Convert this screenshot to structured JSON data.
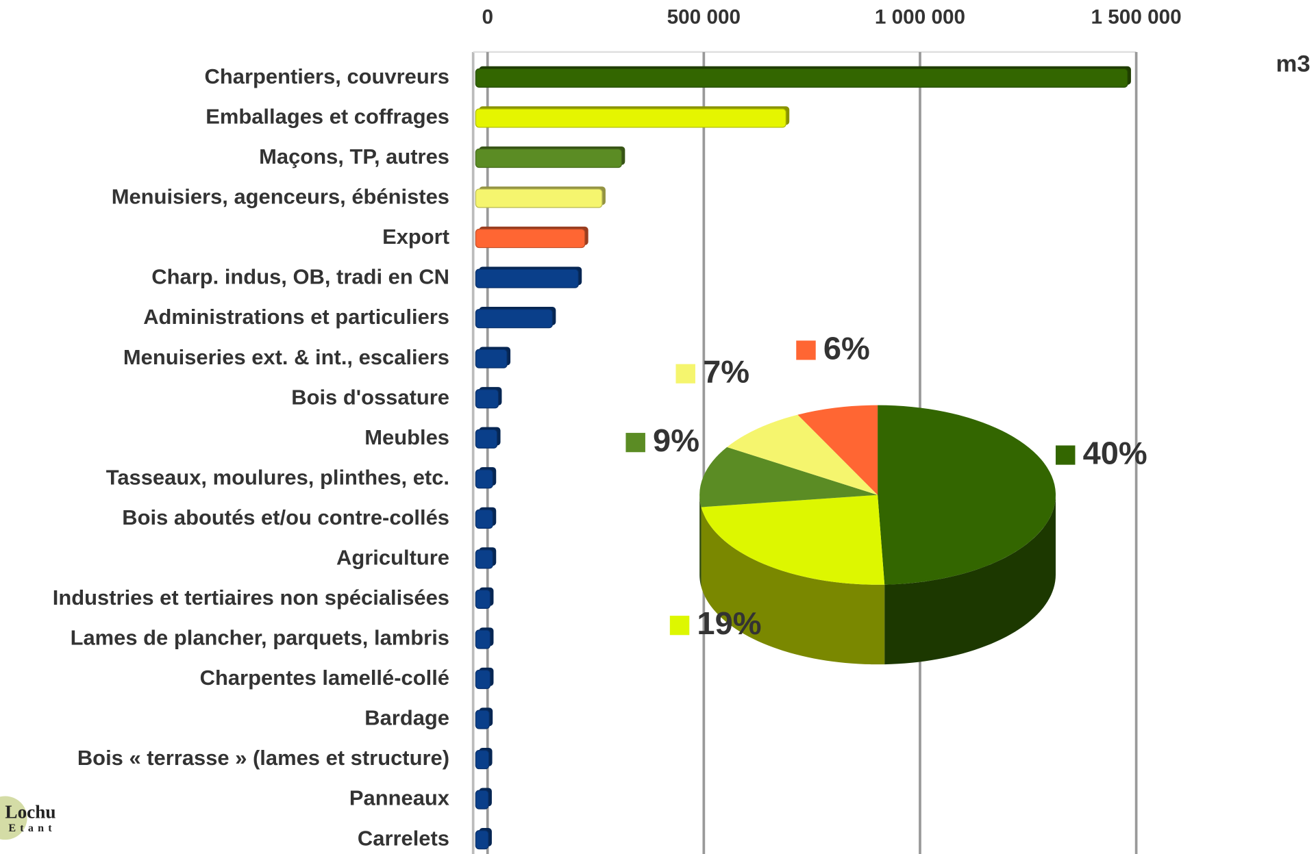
{
  "chart_data": [
    {
      "type": "hbar",
      "x_label": "m3",
      "categories": [
        "Charpentiers, couvreurs",
        "Emballages et coffrages",
        "Maçons, TP, autres",
        "Menuisiers, agenceurs, ébénistes",
        "Export",
        "Charp. indus, OB, tradi en CN",
        "Administrations et particuliers",
        "Menuiseries ext. & int., escaliers",
        "Bois d'ossature",
        "Meubles",
        "Tasseaux, moulures, plinthes, etc.",
        "Bois aboutés et/ou contre-collés",
        "Agriculture",
        "Industries et tertiaires non spécialisées",
        "Lames de plancher, parquets, lambris",
        "Charpentes lamellé-collé",
        "Bardage",
        "Bois « terrasse » (lames et structure)",
        "Panneaux",
        "Carrelets"
      ],
      "values": [
        1480000,
        690000,
        310000,
        265000,
        225000,
        210000,
        150000,
        45000,
        25000,
        22000,
        12000,
        12000,
        12000,
        6000,
        6000,
        6000,
        4000,
        3000,
        2000,
        2000
      ],
      "colors": [
        "#336600",
        "#e5f500",
        "#5b8c24",
        "#f5f56e",
        "#ff6633",
        "#0a3f8a",
        "#0a3f8a",
        "#0a3f8a",
        "#0a3f8a",
        "#0a3f8a",
        "#0a3f8a",
        "#0a3f8a",
        "#0a3f8a",
        "#0a3f8a",
        "#0a3f8a",
        "#0a3f8a",
        "#0a3f8a",
        "#0a3f8a",
        "#0a3f8a",
        "#0a3f8a"
      ],
      "xlim": [
        0,
        1500000
      ],
      "xticks": [
        0,
        {
          "value": 500000,
          "label": "500 000"
        },
        {
          "value": 1000000,
          "label": "1 000 000"
        },
        {
          "value": 1500000,
          "label": "1 500 000"
        }
      ],
      "grid": true
    },
    {
      "type": "pie",
      "values": [
        40,
        19,
        9,
        7,
        6
      ],
      "value_labels": [
        "40%",
        "19%",
        "9%",
        "7%",
        "6%"
      ],
      "colors": [
        "#336600",
        "#ddf700",
        "#5b8c24",
        "#f5f56e",
        "#ff6633"
      ]
    }
  ],
  "logo": {
    "line1": "Lochu",
    "line2": "Etant"
  }
}
